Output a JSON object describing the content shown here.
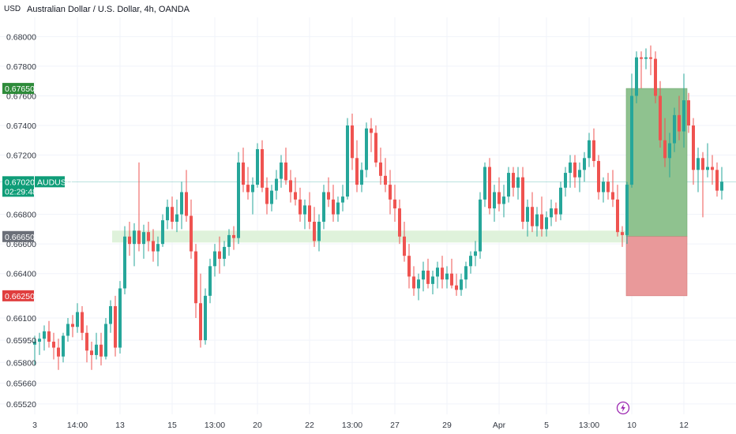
{
  "header": {
    "currency": "USD",
    "title": "Australian Dollar / U.S. Dollar, 4h, OANDA"
  },
  "colors": {
    "up": "#26a69a",
    "down": "#ef5350",
    "target_zone": "#8fc28f",
    "stop_zone": "#e9999a",
    "support_band": "#dff2db",
    "price_line": "#26a69a"
  },
  "price_tags": {
    "target": {
      "label": "0.67650",
      "color": "#2e8b3a"
    },
    "current": {
      "label": "0.67020",
      "symbol": "AUDUSD",
      "countdown": "02:29:48",
      "color": "#0f9d78"
    },
    "support": {
      "label": "0.66650",
      "color": "#6b6f78"
    },
    "stop": {
      "label": "0.66250",
      "color": "#e03e3e"
    }
  },
  "icons": {
    "alert": "lightning-icon"
  },
  "chart_data": {
    "type": "candlestick",
    "title": "Australian Dollar / U.S. Dollar, 4h, OANDA",
    "currency": "USD",
    "ylim": [
      0.6545,
      0.6813
    ],
    "y_ticks": [
      "0.68000",
      "0.67800",
      "0.67600",
      "0.67400",
      "0.67200",
      "0.66800",
      "0.66600",
      "0.66400",
      "0.66100",
      "0.65950",
      "0.65800",
      "0.65660",
      "0.65520"
    ],
    "x_ticks": [
      {
        "i": 0,
        "label": "3"
      },
      {
        "i": 9,
        "label": "14:00"
      },
      {
        "i": 18,
        "label": "13"
      },
      {
        "i": 29,
        "label": "15"
      },
      {
        "i": 38,
        "label": "13:00"
      },
      {
        "i": 47,
        "label": "20"
      },
      {
        "i": 58,
        "label": "22"
      },
      {
        "i": 67,
        "label": "13:00"
      },
      {
        "i": 76,
        "label": "27"
      },
      {
        "i": 87,
        "label": "29"
      },
      {
        "i": 98,
        "label": "Apr"
      },
      {
        "i": 108,
        "label": "5"
      },
      {
        "i": 117,
        "label": "13:00"
      },
      {
        "i": 126,
        "label": "10"
      },
      {
        "i": 137,
        "label": "12"
      }
    ],
    "x_axis_slots": 139,
    "current_price": 0.6702,
    "support_zone": [
      0.6661,
      0.6669
    ],
    "position": {
      "entry": 0.6665,
      "target": 0.6765,
      "stop": 0.6625
    },
    "candles": [
      [
        0.6592,
        0.6598,
        0.6578,
        0.6594
      ],
      [
        0.6594,
        0.66,
        0.6585,
        0.6596
      ],
      [
        0.6596,
        0.6605,
        0.6588,
        0.6601
      ],
      [
        0.6601,
        0.6608,
        0.659,
        0.6594
      ],
      [
        0.6594,
        0.66,
        0.6582,
        0.659
      ],
      [
        0.659,
        0.6596,
        0.6575,
        0.6584
      ],
      [
        0.6584,
        0.66,
        0.658,
        0.6598
      ],
      [
        0.6598,
        0.661,
        0.6594,
        0.6606
      ],
      [
        0.6606,
        0.6612,
        0.6597,
        0.6604
      ],
      [
        0.6604,
        0.662,
        0.66,
        0.6614
      ],
      [
        0.6614,
        0.6618,
        0.6595,
        0.66
      ],
      [
        0.66,
        0.6605,
        0.658,
        0.6588
      ],
      [
        0.6588,
        0.6594,
        0.6575,
        0.6585
      ],
      [
        0.6585,
        0.66,
        0.6582,
        0.6592
      ],
      [
        0.6592,
        0.66,
        0.6578,
        0.6584
      ],
      [
        0.6584,
        0.661,
        0.6582,
        0.6606
      ],
      [
        0.6606,
        0.6622,
        0.66,
        0.6618
      ],
      [
        0.6618,
        0.6625,
        0.6584,
        0.659
      ],
      [
        0.659,
        0.6635,
        0.6586,
        0.663
      ],
      [
        0.663,
        0.6672,
        0.6626,
        0.6665
      ],
      [
        0.6665,
        0.6675,
        0.6652,
        0.666
      ],
      [
        0.666,
        0.6674,
        0.6645,
        0.6669
      ],
      [
        0.6669,
        0.6715,
        0.6655,
        0.666
      ],
      [
        0.666,
        0.6673,
        0.665,
        0.6668
      ],
      [
        0.6668,
        0.6675,
        0.6655,
        0.6662
      ],
      [
        0.6662,
        0.667,
        0.6648,
        0.6655
      ],
      [
        0.6655,
        0.6665,
        0.6645,
        0.666
      ],
      [
        0.666,
        0.668,
        0.6658,
        0.6676
      ],
      [
        0.6676,
        0.669,
        0.667,
        0.6685
      ],
      [
        0.6685,
        0.6692,
        0.667,
        0.6675
      ],
      [
        0.6675,
        0.669,
        0.6668,
        0.668
      ],
      [
        0.668,
        0.6702,
        0.667,
        0.6695
      ],
      [
        0.6695,
        0.671,
        0.6675,
        0.6679
      ],
      [
        0.6679,
        0.669,
        0.665,
        0.6655
      ],
      [
        0.6655,
        0.666,
        0.661,
        0.662
      ],
      [
        0.662,
        0.664,
        0.659,
        0.6595
      ],
      [
        0.6595,
        0.663,
        0.6592,
        0.6625
      ],
      [
        0.6625,
        0.665,
        0.662,
        0.6645
      ],
      [
        0.6645,
        0.666,
        0.6638,
        0.6655
      ],
      [
        0.6655,
        0.6665,
        0.664,
        0.665
      ],
      [
        0.665,
        0.6662,
        0.6645,
        0.6658
      ],
      [
        0.6658,
        0.667,
        0.6652,
        0.6666
      ],
      [
        0.6666,
        0.6672,
        0.6656,
        0.6664
      ],
      [
        0.6664,
        0.6722,
        0.666,
        0.6715
      ],
      [
        0.6715,
        0.6725,
        0.6695,
        0.67
      ],
      [
        0.67,
        0.6712,
        0.669,
        0.6695
      ],
      [
        0.6695,
        0.6705,
        0.668,
        0.67
      ],
      [
        0.67,
        0.6728,
        0.6698,
        0.6724
      ],
      [
        0.6724,
        0.673,
        0.6695,
        0.6698
      ],
      [
        0.6698,
        0.6705,
        0.668,
        0.6687
      ],
      [
        0.6687,
        0.67,
        0.6682,
        0.6696
      ],
      [
        0.6696,
        0.671,
        0.669,
        0.6704
      ],
      [
        0.6704,
        0.672,
        0.6698,
        0.6715
      ],
      [
        0.6715,
        0.6725,
        0.67,
        0.6703
      ],
      [
        0.6703,
        0.671,
        0.6688,
        0.6695
      ],
      [
        0.6695,
        0.6705,
        0.6686,
        0.669
      ],
      [
        0.669,
        0.6698,
        0.6675,
        0.668
      ],
      [
        0.668,
        0.669,
        0.667,
        0.6686
      ],
      [
        0.6686,
        0.6695,
        0.667,
        0.6675
      ],
      [
        0.6675,
        0.6685,
        0.6658,
        0.6662
      ],
      [
        0.6662,
        0.668,
        0.6655,
        0.6675
      ],
      [
        0.6675,
        0.67,
        0.667,
        0.6695
      ],
      [
        0.6695,
        0.6705,
        0.6685,
        0.669
      ],
      [
        0.669,
        0.67,
        0.6675,
        0.668
      ],
      [
        0.668,
        0.6692,
        0.6675,
        0.6688
      ],
      [
        0.6688,
        0.67,
        0.6682,
        0.6692
      ],
      [
        0.6692,
        0.6745,
        0.669,
        0.674
      ],
      [
        0.674,
        0.6748,
        0.671,
        0.6718
      ],
      [
        0.6718,
        0.673,
        0.6695,
        0.67
      ],
      [
        0.67,
        0.6715,
        0.6695,
        0.671
      ],
      [
        0.671,
        0.6742,
        0.6705,
        0.6738
      ],
      [
        0.6738,
        0.6745,
        0.6722,
        0.6735
      ],
      [
        0.6735,
        0.674,
        0.6712,
        0.6715
      ],
      [
        0.6715,
        0.6725,
        0.67,
        0.6706
      ],
      [
        0.6706,
        0.6718,
        0.6695,
        0.67
      ],
      [
        0.67,
        0.671,
        0.668,
        0.669
      ],
      [
        0.669,
        0.67,
        0.6675,
        0.6684
      ],
      [
        0.6684,
        0.669,
        0.666,
        0.6665
      ],
      [
        0.6665,
        0.6675,
        0.6648,
        0.6652
      ],
      [
        0.6652,
        0.666,
        0.663,
        0.6638
      ],
      [
        0.6638,
        0.6645,
        0.6625,
        0.663
      ],
      [
        0.663,
        0.664,
        0.6622,
        0.6636
      ],
      [
        0.6636,
        0.6648,
        0.6628,
        0.6642
      ],
      [
        0.6642,
        0.665,
        0.663,
        0.6633
      ],
      [
        0.6633,
        0.6642,
        0.6626,
        0.6638
      ],
      [
        0.6638,
        0.6648,
        0.663,
        0.6644
      ],
      [
        0.6644,
        0.6652,
        0.663,
        0.6636
      ],
      [
        0.6636,
        0.6645,
        0.663,
        0.664
      ],
      [
        0.664,
        0.665,
        0.663,
        0.6632
      ],
      [
        0.6632,
        0.664,
        0.6625,
        0.6629
      ],
      [
        0.6629,
        0.664,
        0.6625,
        0.6636
      ],
      [
        0.6636,
        0.6648,
        0.663,
        0.6645
      ],
      [
        0.6645,
        0.6655,
        0.664,
        0.6652
      ],
      [
        0.6652,
        0.6662,
        0.6645,
        0.6655
      ],
      [
        0.6655,
        0.6695,
        0.665,
        0.669
      ],
      [
        0.669,
        0.6715,
        0.6685,
        0.6712
      ],
      [
        0.6712,
        0.6718,
        0.668,
        0.6684
      ],
      [
        0.6684,
        0.67,
        0.6675,
        0.6695
      ],
      [
        0.6695,
        0.6705,
        0.6682,
        0.6687
      ],
      [
        0.6687,
        0.67,
        0.6678,
        0.6692
      ],
      [
        0.6692,
        0.6712,
        0.6688,
        0.6708
      ],
      [
        0.6708,
        0.6712,
        0.6692,
        0.6698
      ],
      [
        0.6698,
        0.6712,
        0.669,
        0.6705
      ],
      [
        0.6705,
        0.6712,
        0.667,
        0.6675
      ],
      [
        0.6675,
        0.669,
        0.6665,
        0.6685
      ],
      [
        0.6685,
        0.6695,
        0.6668,
        0.6672
      ],
      [
        0.6672,
        0.6685,
        0.6665,
        0.668
      ],
      [
        0.668,
        0.6692,
        0.6665,
        0.667
      ],
      [
        0.667,
        0.6682,
        0.6665,
        0.6678
      ],
      [
        0.6678,
        0.669,
        0.6672,
        0.6684
      ],
      [
        0.6684,
        0.6688,
        0.6675,
        0.668
      ],
      [
        0.668,
        0.6702,
        0.6676,
        0.6698
      ],
      [
        0.6698,
        0.6712,
        0.6692,
        0.6708
      ],
      [
        0.6708,
        0.672,
        0.6698,
        0.6715
      ],
      [
        0.6715,
        0.672,
        0.6698,
        0.6705
      ],
      [
        0.6705,
        0.6715,
        0.6695,
        0.671
      ],
      [
        0.671,
        0.6722,
        0.6702,
        0.6718
      ],
      [
        0.6718,
        0.6735,
        0.6712,
        0.673
      ],
      [
        0.673,
        0.6738,
        0.6712,
        0.6716
      ],
      [
        0.6716,
        0.672,
        0.669,
        0.6695
      ],
      [
        0.6695,
        0.6705,
        0.6688,
        0.6702
      ],
      [
        0.6702,
        0.6708,
        0.669,
        0.6695
      ],
      [
        0.6695,
        0.671,
        0.6685,
        0.669
      ],
      [
        0.669,
        0.67,
        0.6665,
        0.6668
      ],
      [
        0.6668,
        0.6672,
        0.6658,
        0.6666
      ],
      [
        0.6666,
        0.6702,
        0.666,
        0.67
      ],
      [
        0.67,
        0.6775,
        0.6698,
        0.676
      ],
      [
        0.676,
        0.679,
        0.6755,
        0.6786
      ],
      [
        0.6786,
        0.679,
        0.6765,
        0.6785
      ],
      [
        0.6785,
        0.6792,
        0.6778,
        0.6786
      ],
      [
        0.6786,
        0.6794,
        0.6774,
        0.6785
      ],
      [
        0.6785,
        0.679,
        0.6755,
        0.676
      ],
      [
        0.676,
        0.677,
        0.6725,
        0.673
      ],
      [
        0.673,
        0.6745,
        0.6712,
        0.6718
      ],
      [
        0.6718,
        0.6735,
        0.6705,
        0.6728
      ],
      [
        0.6728,
        0.6752,
        0.6722,
        0.6747
      ],
      [
        0.6747,
        0.676,
        0.673,
        0.6736
      ],
      [
        0.6736,
        0.6775,
        0.6725,
        0.6757
      ],
      [
        0.6757,
        0.6762,
        0.6735,
        0.674
      ],
      [
        0.674,
        0.6745,
        0.67,
        0.671
      ],
      [
        0.671,
        0.6725,
        0.6695,
        0.6718
      ],
      [
        0.6718,
        0.6722,
        0.6678,
        0.671
      ],
      [
        0.671,
        0.6728,
        0.6705,
        0.6712
      ],
      [
        0.6712,
        0.672,
        0.67,
        0.671
      ],
      [
        0.671,
        0.6715,
        0.6692,
        0.6696
      ],
      [
        0.6696,
        0.6712,
        0.669,
        0.6702
      ]
    ]
  }
}
